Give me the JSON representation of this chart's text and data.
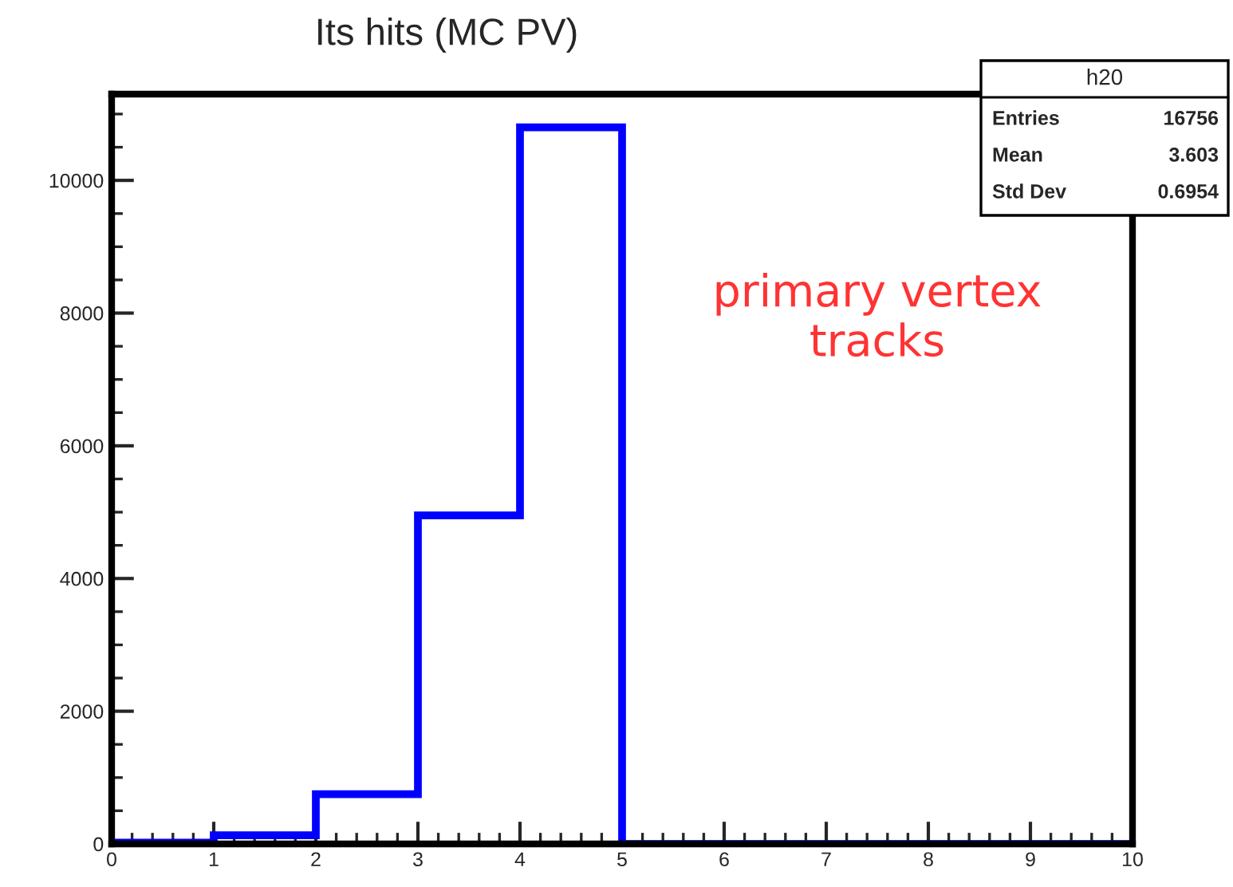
{
  "chart_data": {
    "type": "histogram",
    "title": "Its hits (MC PV)",
    "bins": [
      0,
      1,
      2,
      3,
      4,
      5,
      6,
      7,
      8,
      9,
      10
    ],
    "values": [
      20,
      130,
      750,
      4950,
      10800,
      0,
      0,
      0,
      0,
      0
    ],
    "color": "#0000ff",
    "xlim": [
      0,
      10
    ],
    "xticks": [
      0,
      1,
      2,
      3,
      4,
      5,
      6,
      7,
      8,
      9,
      10
    ],
    "ylim": [
      0,
      11300
    ],
    "yticks": [
      0,
      2000,
      4000,
      6000,
      8000,
      10000
    ],
    "grid": false,
    "annotations": [
      "primary vertex\ntracks",
      "h20",
      "Entries",
      "16756",
      "Mean",
      "3.603",
      "Std Dev",
      "0.6954"
    ]
  }
}
